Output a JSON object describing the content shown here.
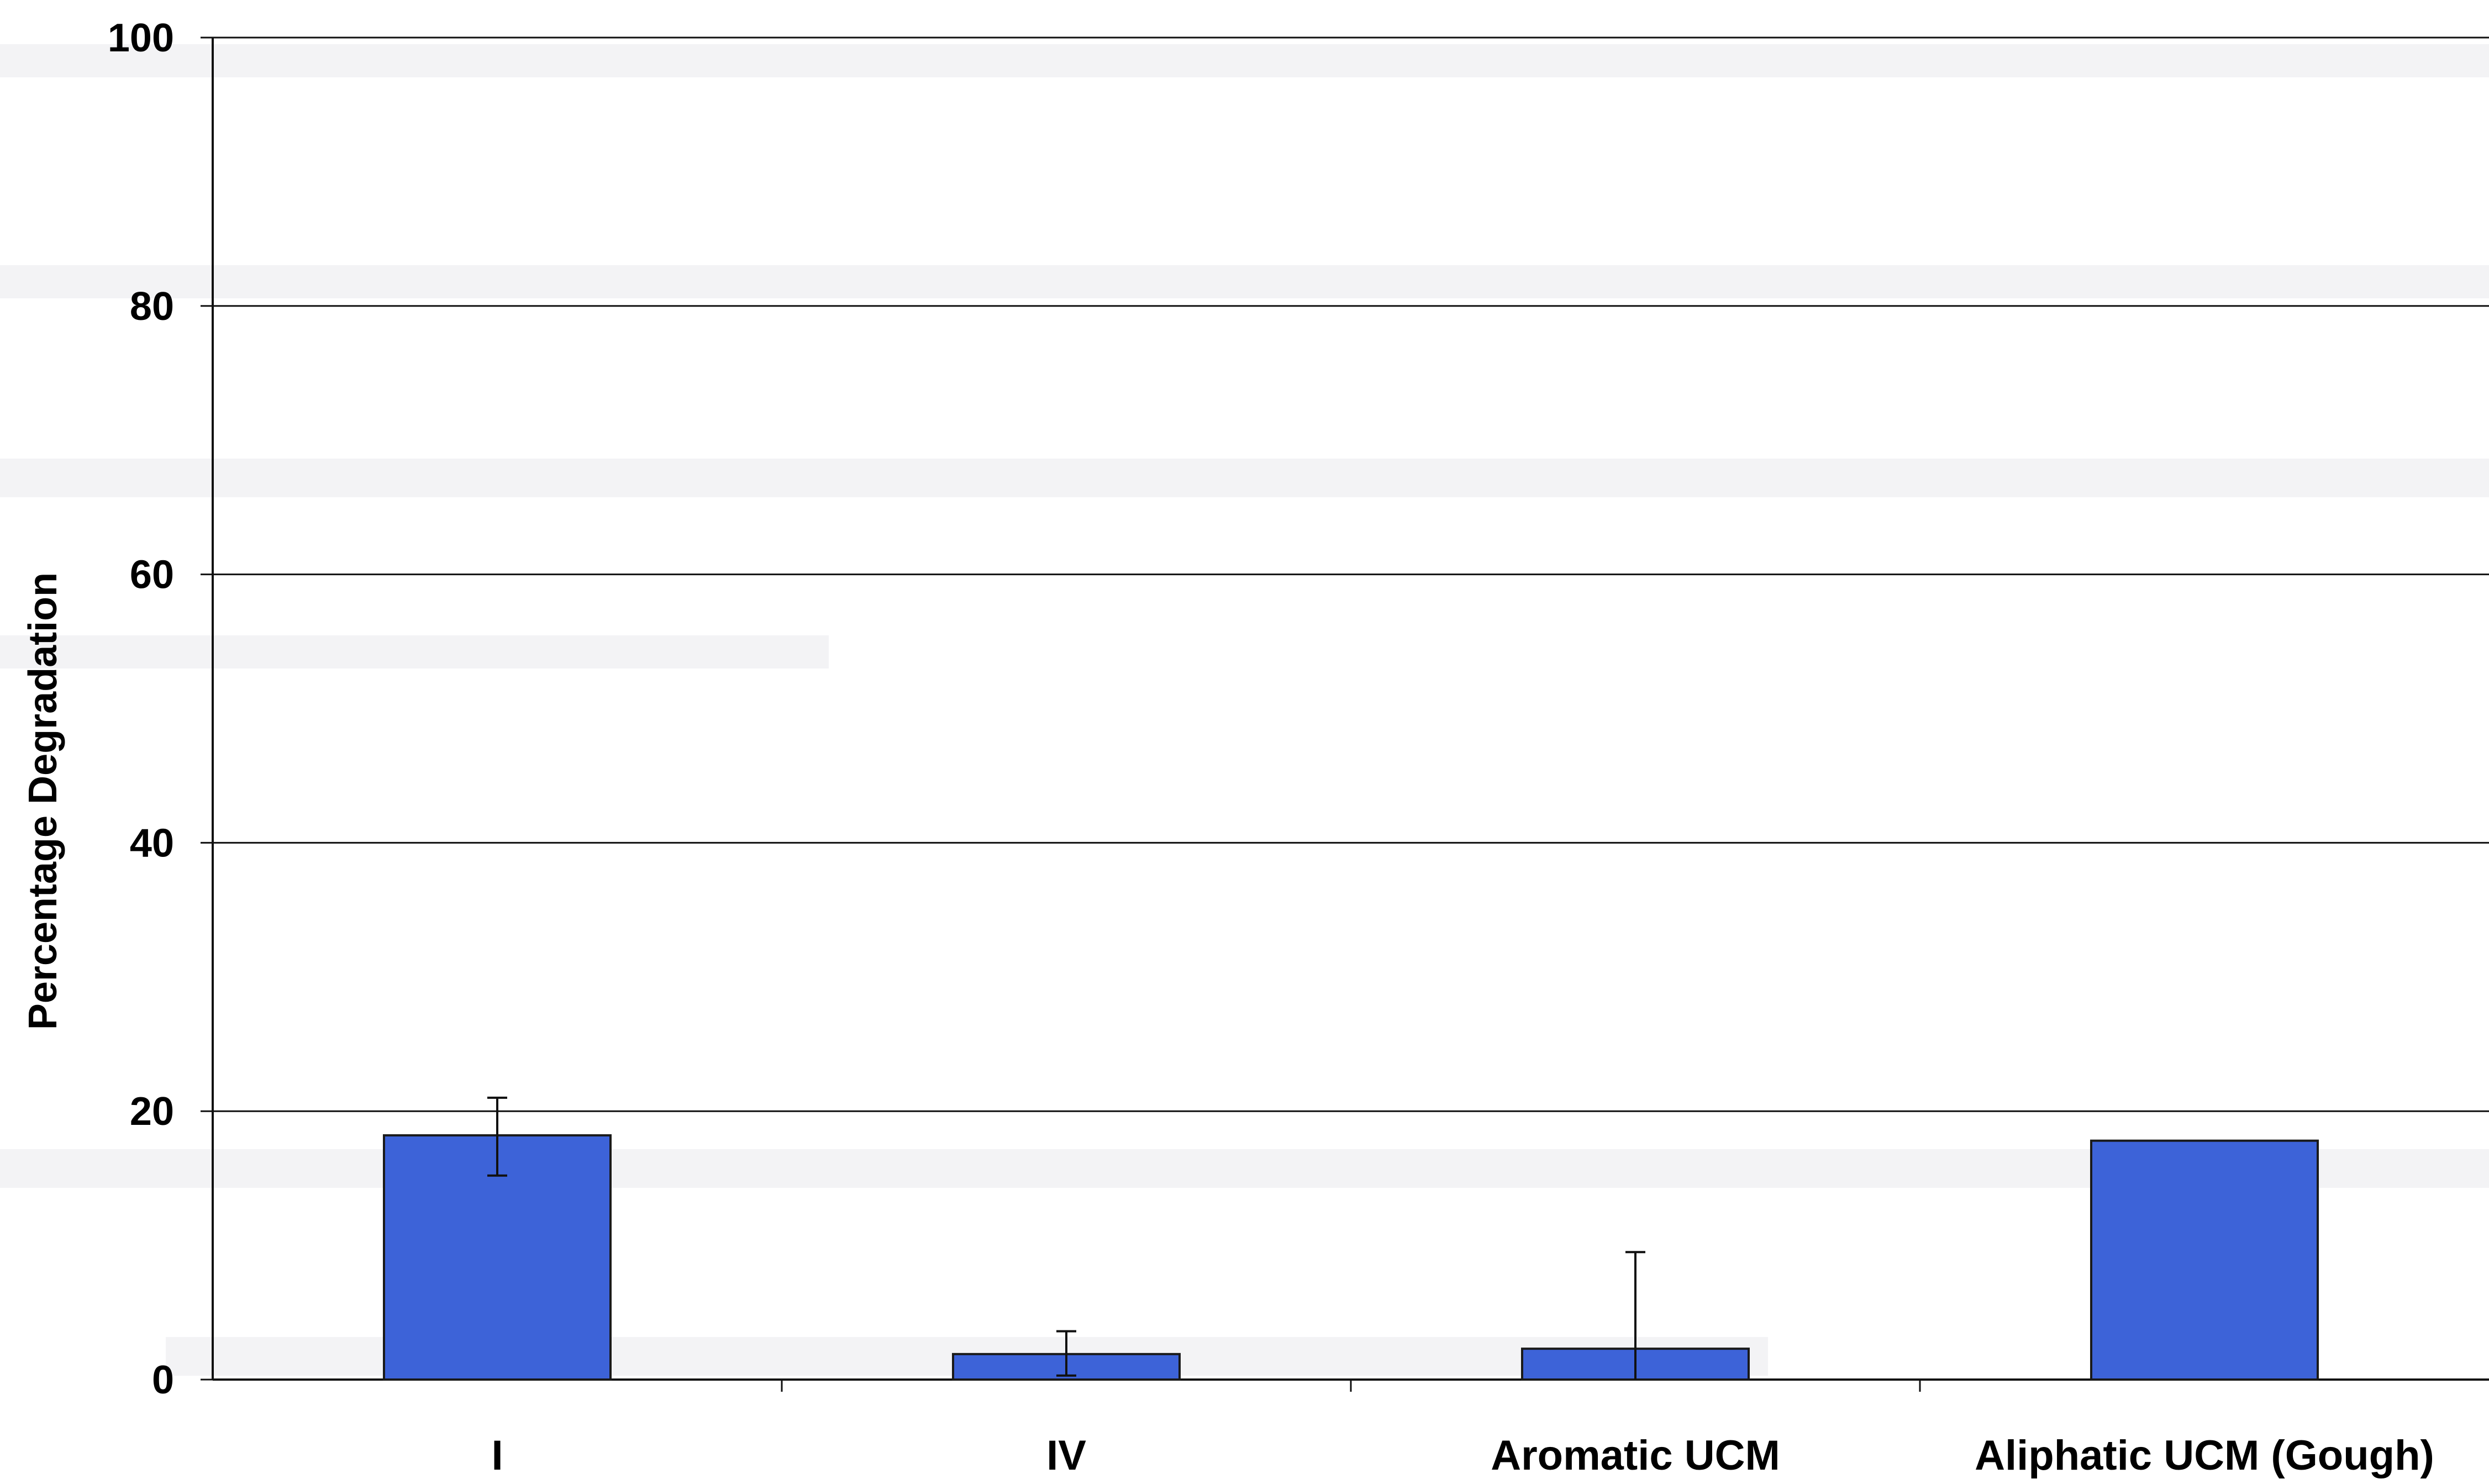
{
  "chart_data": {
    "type": "bar",
    "categories": [
      "I",
      "IV",
      "Aromatic UCM",
      "Aliphatic UCM (Gough)"
    ],
    "values": [
      18.2,
      1.9,
      2.3,
      17.8
    ],
    "error_bars": [
      {
        "low": 15.2,
        "high": 21.0
      },
      {
        "low": 0.3,
        "high": 3.6
      },
      {
        "low": 0.0,
        "high": 9.5
      },
      null
    ],
    "ylabel": "Percentage Degradation",
    "xlabel": "",
    "ylim": [
      0,
      100
    ],
    "yticks": [
      0,
      20,
      40,
      60,
      80,
      100
    ],
    "grid": true,
    "bar_color": "#3d63d8",
    "bar_edge_color": "#1a1a1a",
    "background_text_visible": true
  }
}
